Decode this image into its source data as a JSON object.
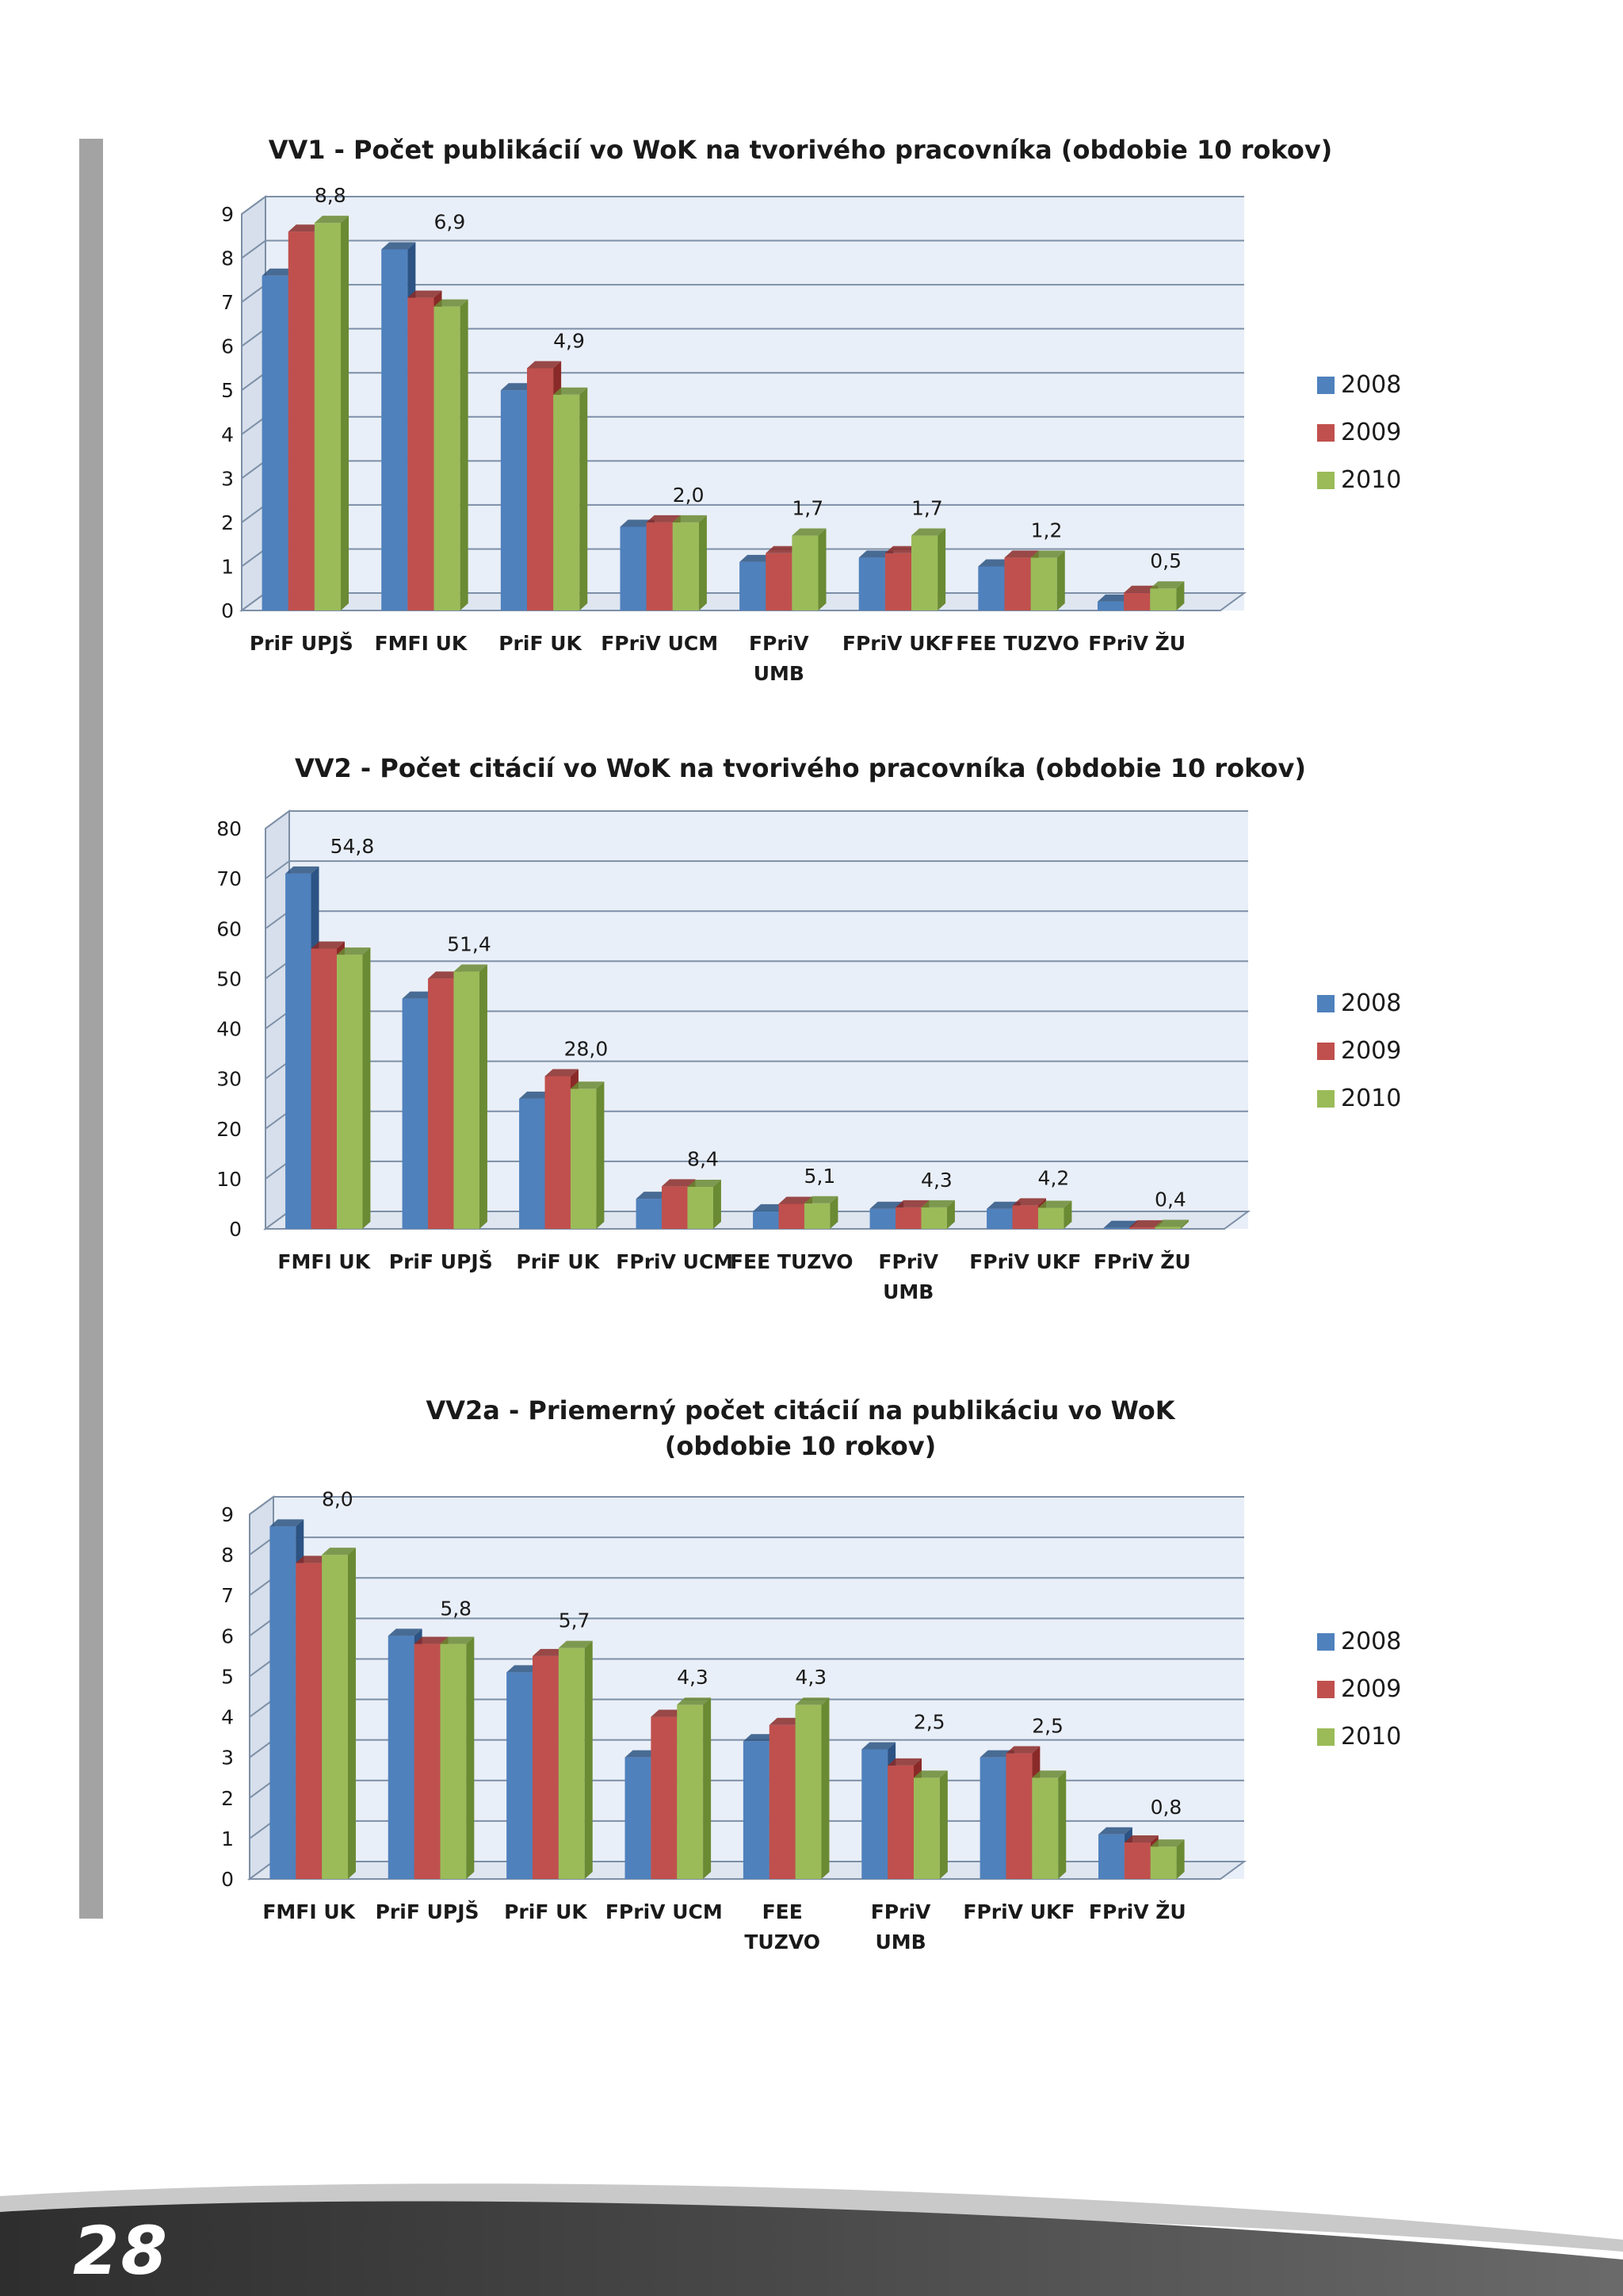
{
  "page": {
    "number": "28"
  },
  "colors": {
    "series": [
      "#4f81bd",
      "#c0504d",
      "#9bbb59"
    ],
    "series_dark": [
      "#2c5383",
      "#8a2a28",
      "#6a8a33"
    ],
    "plot_bg": "#e9eff8",
    "plot_side": "#d6dfeb",
    "grid": "#7d8fa6",
    "side_bar": "#a3a3a3"
  },
  "chart_data": [
    {
      "type": "bar",
      "title": [
        "VV1 - Počet publikácií vo WoK na tvorivého pracovníka (obdobie 10 rokov)"
      ],
      "categories": [
        [
          "PriF UPJŠ"
        ],
        [
          "FMFI  UK"
        ],
        [
          "PriF  UK"
        ],
        [
          "FPriV UCM"
        ],
        [
          "FPriV",
          "UMB"
        ],
        [
          "FPriV  UKF"
        ],
        [
          "FEE TUZVO"
        ],
        [
          "FPriV ŽU"
        ]
      ],
      "series": [
        {
          "name": "2008",
          "values": [
            7.6,
            8.2,
            5.0,
            1.9,
            1.1,
            1.2,
            1.0,
            0.2
          ]
        },
        {
          "name": "2009",
          "values": [
            8.6,
            7.1,
            5.5,
            2.0,
            1.3,
            1.3,
            1.2,
            0.4
          ]
        },
        {
          "name": "2010",
          "values": [
            8.8,
            6.9,
            4.9,
            2.0,
            1.7,
            1.7,
            1.2,
            0.5
          ]
        }
      ],
      "data_labels": [
        "8,8",
        "6,9",
        "4,9",
        "2,0",
        "1,7",
        "1,7",
        "1,2",
        "0,5"
      ],
      "y_ticks": [
        "0",
        "1",
        "2",
        "3",
        "4",
        "5",
        "6",
        "7",
        "8",
        "9"
      ],
      "ylim": [
        0,
        9
      ],
      "legend": "right",
      "grid": true
    },
    {
      "type": "bar",
      "title": [
        "VV2 - Počet citácií vo WoK na tvorivého pracovníka (obdobie 10 rokov)"
      ],
      "categories": [
        [
          "FMFI  UK"
        ],
        [
          "PriF UPJŠ"
        ],
        [
          "PriF  UK"
        ],
        [
          "FPriV UCM"
        ],
        [
          "FEE TUZVO"
        ],
        [
          "FPriV",
          "UMB"
        ],
        [
          "FPriV  UKF"
        ],
        [
          "FPriV ŽU"
        ]
      ],
      "series": [
        {
          "name": "2008",
          "values": [
            71,
            46,
            26,
            6,
            3.5,
            4,
            4,
            0.2
          ]
        },
        {
          "name": "2009",
          "values": [
            56,
            50,
            30.5,
            8.5,
            5,
            4.3,
            4.7,
            0.3
          ]
        },
        {
          "name": "2010",
          "values": [
            54.8,
            51.4,
            28.0,
            8.4,
            5.1,
            4.3,
            4.2,
            0.4
          ]
        }
      ],
      "data_labels": [
        "54,8",
        "51,4",
        "28,0",
        "8,4",
        "5,1",
        "4,3",
        "4,2",
        "0,4"
      ],
      "y_ticks": [
        "0",
        "10",
        "20",
        "30",
        "40",
        "50",
        "60",
        "70",
        "80"
      ],
      "ylim": [
        0,
        80
      ],
      "legend": "right",
      "grid": true
    },
    {
      "type": "bar",
      "title": [
        "VV2a - Priemerný počet citácií na publikáciu vo WoK",
        "(obdobie 10 rokov)"
      ],
      "categories": [
        [
          "FMFI  UK"
        ],
        [
          "PriF UPJŠ"
        ],
        [
          "PriF  UK"
        ],
        [
          "FPriV UCM"
        ],
        [
          "FEE",
          "TUZVO"
        ],
        [
          "FPriV",
          "UMB"
        ],
        [
          "FPriV  UKF"
        ],
        [
          "FPriV ŽU"
        ]
      ],
      "series": [
        {
          "name": "2008",
          "values": [
            8.7,
            6.0,
            5.1,
            3.0,
            3.4,
            3.2,
            3.0,
            1.1
          ]
        },
        {
          "name": "2009",
          "values": [
            7.8,
            5.8,
            5.5,
            4.0,
            3.8,
            2.8,
            3.1,
            0.9
          ]
        },
        {
          "name": "2010",
          "values": [
            8.0,
            5.8,
            5.7,
            4.3,
            4.3,
            2.5,
            2.5,
            0.8
          ]
        }
      ],
      "data_labels": [
        "8,0",
        "5,8",
        "5,7",
        "4,3",
        "4,3",
        "2,5",
        "2,5",
        "0,8"
      ],
      "y_ticks": [
        "0",
        "1",
        "2",
        "3",
        "4",
        "5",
        "6",
        "7",
        "8",
        "9"
      ],
      "ylim": [
        0,
        9
      ],
      "legend": "right",
      "grid": true
    }
  ]
}
